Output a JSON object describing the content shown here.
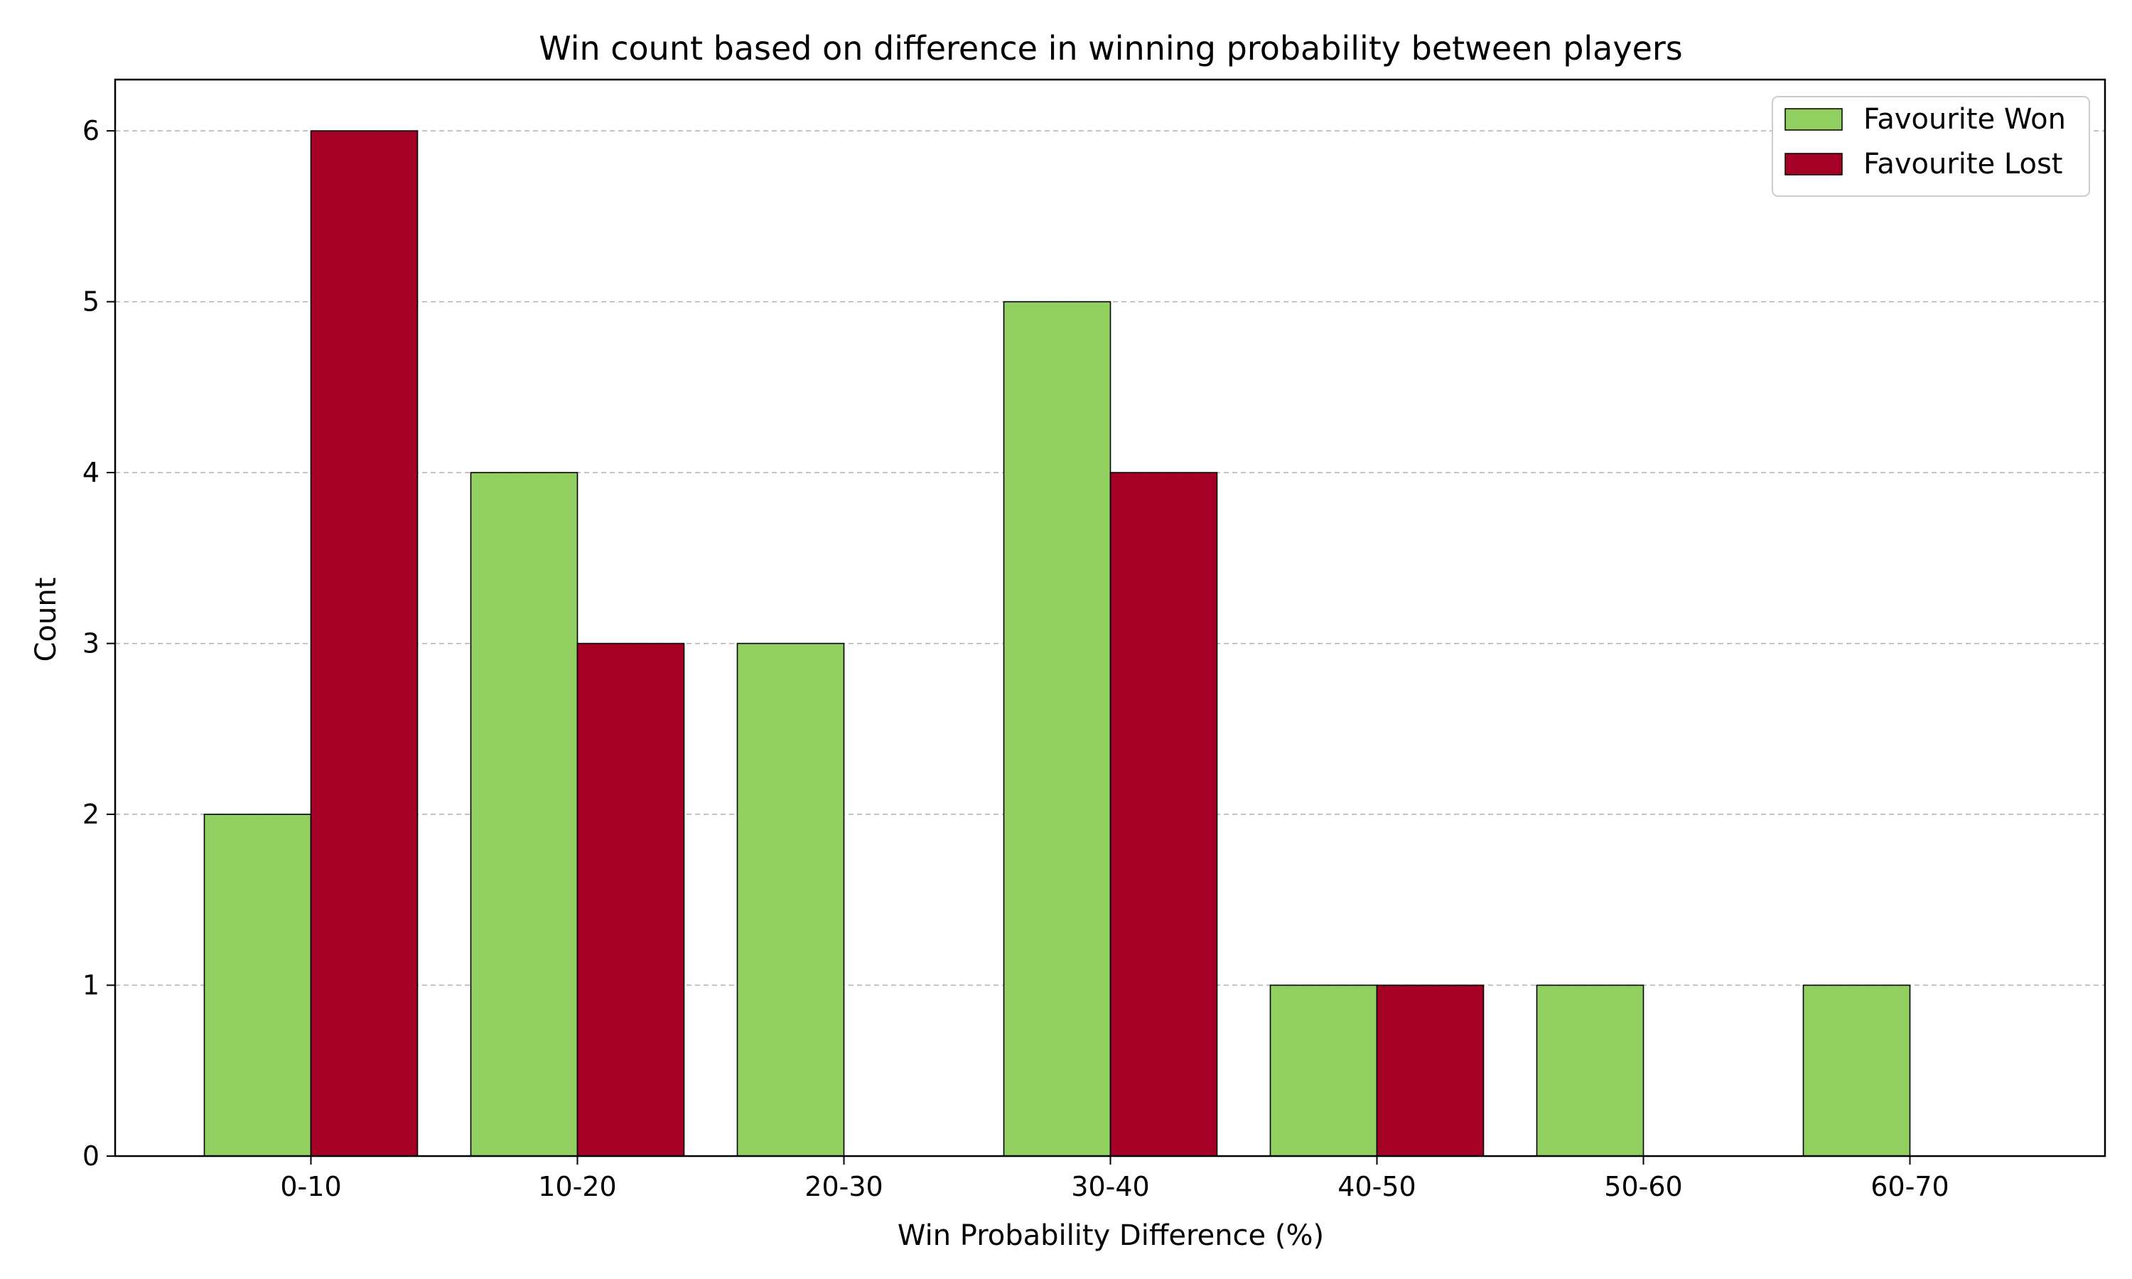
{
  "chart_data": {
    "type": "bar",
    "title": "Win count based on difference in winning probability between players",
    "xlabel": "Win Probability Difference (%)",
    "ylabel": "Count",
    "categories": [
      "0-10",
      "10-20",
      "20-30",
      "30-40",
      "40-50",
      "50-60",
      "60-70"
    ],
    "series": [
      {
        "name": "Favourite Won",
        "values": [
          2,
          4,
          3,
          5,
          1,
          1,
          1
        ],
        "color": "#91d060"
      },
      {
        "name": "Favourite Lost",
        "values": [
          6,
          3,
          0,
          4,
          1,
          0,
          0
        ],
        "color": "#a50026"
      }
    ],
    "ylim": [
      0,
      6.3
    ],
    "yticks": [
      0,
      1,
      2,
      3,
      4,
      5,
      6
    ],
    "grid": "y-dashed",
    "legend_position": "top-right"
  }
}
